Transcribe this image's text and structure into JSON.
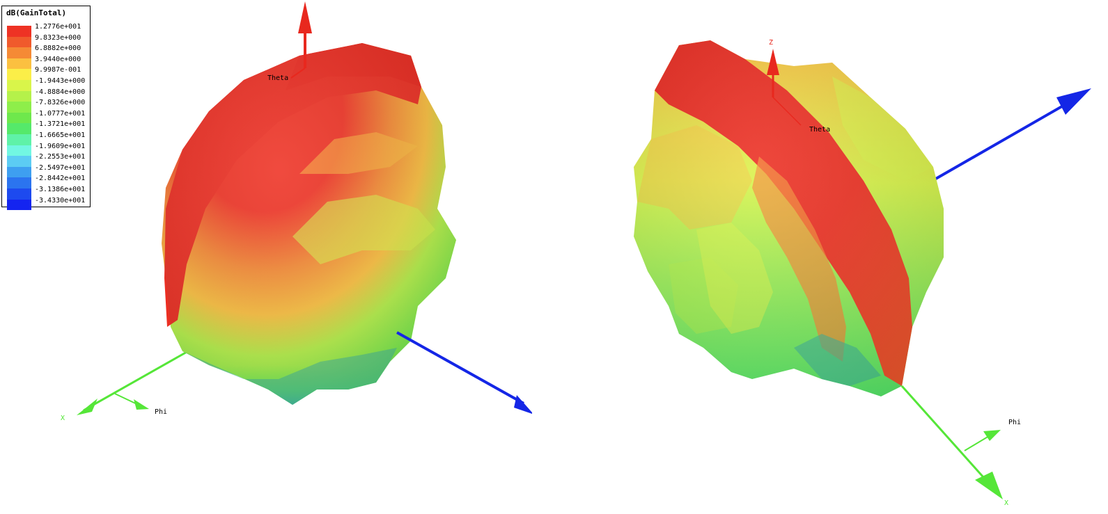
{
  "legend": {
    "title": "dB(GainTotal)",
    "levels": [
      {
        "value": "1.2776e+001",
        "color": "#ee3224"
      },
      {
        "value": "9.8323e+000",
        "color": "#f05a2c"
      },
      {
        "value": "6.8882e+000",
        "color": "#f58a35"
      },
      {
        "value": "3.9440e+000",
        "color": "#fbc040"
      },
      {
        "value": "9.9987e-001",
        "color": "#fbee48"
      },
      {
        "value": "-1.9443e+000",
        "color": "#d9f54a"
      },
      {
        "value": "-4.8884e+000",
        "color": "#b5f14a"
      },
      {
        "value": "-7.8326e+000",
        "color": "#8eee4a"
      },
      {
        "value": "-1.0777e+001",
        "color": "#6ee84c"
      },
      {
        "value": "-1.3721e+001",
        "color": "#55e96a"
      },
      {
        "value": "-1.6665e+001",
        "color": "#5ff2a8"
      },
      {
        "value": "-1.9609e+001",
        "color": "#72f7e2"
      },
      {
        "value": "-2.2553e+001",
        "color": "#5cccf3"
      },
      {
        "value": "-2.5497e+001",
        "color": "#3e9ff0"
      },
      {
        "value": "-2.8442e+001",
        "color": "#2b74ef"
      },
      {
        "value": "-3.1386e+001",
        "color": "#1d4aef"
      },
      {
        "value": "-3.4330e+001",
        "color": "#1424f0"
      }
    ]
  },
  "left_view": {
    "theta_label": "Theta",
    "phi_label": "Phi",
    "x_label": "X"
  },
  "right_view": {
    "z_label": "Z",
    "theta_label": "Theta",
    "phi_label": "Phi",
    "x_label": "X"
  },
  "colors": {
    "z_axis": "#e8281e",
    "x_axis": "#55e638",
    "y_axis": "#1426e6"
  }
}
